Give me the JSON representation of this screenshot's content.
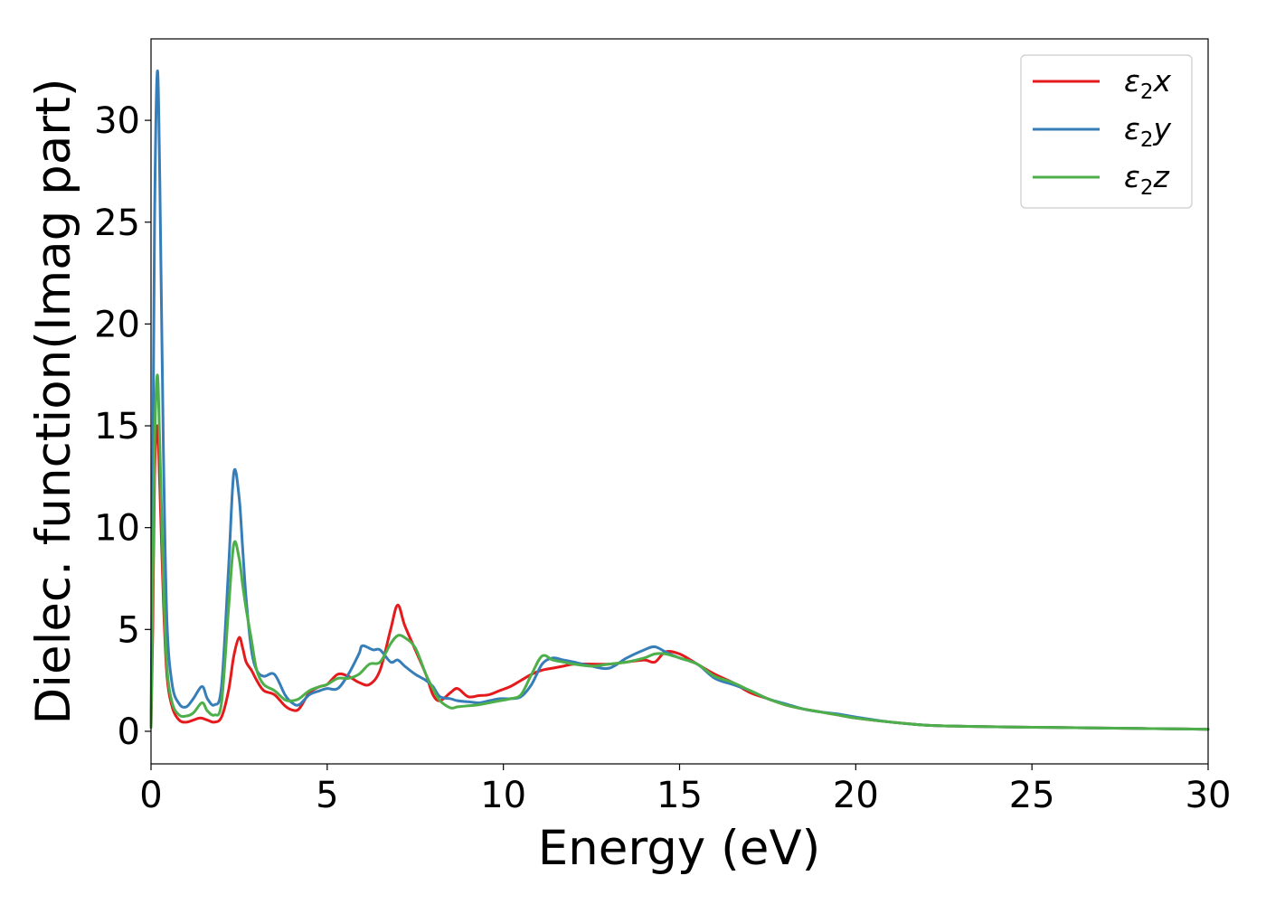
{
  "chart_data": {
    "type": "line",
    "title": "",
    "xlabel": "Energy (eV)",
    "ylabel": "Dielec. function(Imag part)",
    "xlim": [
      0,
      30
    ],
    "ylim": [
      -1.6,
      34
    ],
    "xticks": [
      0,
      5,
      10,
      15,
      20,
      25,
      30
    ],
    "yticks": [
      0,
      5,
      10,
      15,
      20,
      25,
      30
    ],
    "xtick_labels": [
      "0",
      "5",
      "10",
      "15",
      "20",
      "25",
      "30"
    ],
    "ytick_labels": [
      "0",
      "5",
      "10",
      "15",
      "20",
      "25",
      "30"
    ],
    "grid": false,
    "legend_position": "top-right",
    "series": [
      {
        "name": "ε₂x",
        "legend_base": "ε",
        "legend_sub": "2",
        "legend_suffix": "x",
        "color": "#e41a1c",
        "x": [
          0,
          0.05,
          0.1,
          0.18,
          0.25,
          0.35,
          0.45,
          0.6,
          0.8,
          1.0,
          1.2,
          1.4,
          1.6,
          1.8,
          2.0,
          2.2,
          2.35,
          2.5,
          2.6,
          2.7,
          2.85,
          3.0,
          3.2,
          3.5,
          3.8,
          4.0,
          4.2,
          4.5,
          4.8,
          5.0,
          5.3,
          5.6,
          5.9,
          6.2,
          6.5,
          6.8,
          7.0,
          7.2,
          7.5,
          7.8,
          8.0,
          8.2,
          8.5,
          8.7,
          9.0,
          9.3,
          9.6,
          9.9,
          10.2,
          10.5,
          10.8,
          11.1,
          11.4,
          11.7,
          12.0,
          12.5,
          13.0,
          13.5,
          14.0,
          14.3,
          14.6,
          15.0,
          15.5,
          16.0,
          16.5,
          17.0,
          17.5,
          18.0,
          18.5,
          19.0,
          19.5,
          20.0,
          21.0,
          22.0,
          23.0,
          24.0,
          25.0,
          26.0,
          27.0,
          28.0,
          29.0,
          30.0
        ],
        "y": [
          0.2,
          5,
          12.5,
          15.0,
          12.0,
          6.5,
          2.8,
          1.2,
          0.55,
          0.45,
          0.55,
          0.65,
          0.55,
          0.45,
          0.7,
          2.0,
          3.7,
          4.6,
          4.1,
          3.4,
          3.0,
          2.5,
          2.0,
          1.8,
          1.25,
          1.05,
          1.1,
          1.9,
          2.2,
          2.3,
          2.8,
          2.7,
          2.4,
          2.3,
          3.0,
          5.0,
          6.2,
          5.2,
          4.0,
          2.8,
          1.8,
          1.5,
          1.9,
          2.1,
          1.7,
          1.75,
          1.8,
          2.0,
          2.2,
          2.5,
          2.8,
          3.0,
          3.1,
          3.2,
          3.3,
          3.3,
          3.3,
          3.4,
          3.5,
          3.4,
          3.9,
          3.8,
          3.3,
          2.8,
          2.4,
          1.9,
          1.6,
          1.3,
          1.1,
          0.95,
          0.8,
          0.65,
          0.45,
          0.3,
          0.25,
          0.22,
          0.2,
          0.18,
          0.16,
          0.14,
          0.12,
          0.1
        ]
      },
      {
        "name": "ε₂y",
        "legend_base": "ε",
        "legend_sub": "2",
        "legend_suffix": "y",
        "color": "#377eb8",
        "x": [
          0,
          0.05,
          0.1,
          0.18,
          0.25,
          0.35,
          0.45,
          0.6,
          0.8,
          1.0,
          1.2,
          1.45,
          1.6,
          1.8,
          2.0,
          2.2,
          2.35,
          2.5,
          2.6,
          2.7,
          2.85,
          3.0,
          3.2,
          3.5,
          3.8,
          4.0,
          4.2,
          4.5,
          4.8,
          5.0,
          5.3,
          5.6,
          5.9,
          6.0,
          6.3,
          6.5,
          6.8,
          7.0,
          7.2,
          7.5,
          7.8,
          8.0,
          8.2,
          8.5,
          8.7,
          9.0,
          9.3,
          9.6,
          9.9,
          10.2,
          10.5,
          10.8,
          11.1,
          11.4,
          11.7,
          12.0,
          12.5,
          13.0,
          13.5,
          14.0,
          14.3,
          14.6,
          15.0,
          15.5,
          16.0,
          16.5,
          17.0,
          17.5,
          18.0,
          18.5,
          19.0,
          19.5,
          20.0,
          21.0,
          22.0,
          23.0,
          24.0,
          25.0,
          26.0,
          27.0,
          28.0,
          29.0,
          30.0
        ],
        "y": [
          0.3,
          12,
          25,
          32.4,
          27,
          14,
          5.5,
          2.3,
          1.35,
          1.2,
          1.6,
          2.2,
          1.6,
          1.3,
          2.2,
          8.0,
          12.7,
          11.5,
          9.0,
          6.5,
          4.0,
          3.0,
          2.7,
          2.8,
          1.8,
          1.4,
          1.3,
          1.8,
          2.0,
          2.1,
          2.1,
          2.8,
          3.8,
          4.2,
          4.0,
          4.0,
          3.4,
          3.5,
          3.2,
          2.8,
          2.5,
          2.2,
          1.7,
          1.6,
          1.5,
          1.45,
          1.4,
          1.5,
          1.6,
          1.6,
          1.7,
          2.3,
          3.3,
          3.6,
          3.5,
          3.4,
          3.2,
          3.1,
          3.6,
          4.0,
          4.15,
          3.9,
          3.6,
          3.3,
          2.6,
          2.3,
          2.0,
          1.6,
          1.35,
          1.1,
          0.95,
          0.85,
          0.7,
          0.45,
          0.3,
          0.25,
          0.22,
          0.2,
          0.18,
          0.16,
          0.14,
          0.12,
          0.1
        ]
      },
      {
        "name": "ε₂z",
        "legend_base": "ε",
        "legend_sub": "2",
        "legend_suffix": "z",
        "color": "#4daf4a",
        "x": [
          0,
          0.05,
          0.1,
          0.18,
          0.25,
          0.35,
          0.45,
          0.6,
          0.8,
          1.0,
          1.2,
          1.45,
          1.6,
          1.8,
          2.0,
          2.2,
          2.35,
          2.5,
          2.6,
          2.7,
          2.85,
          3.0,
          3.2,
          3.5,
          3.8,
          4.0,
          4.2,
          4.5,
          4.8,
          5.0,
          5.3,
          5.6,
          5.9,
          6.2,
          6.5,
          6.8,
          7.0,
          7.2,
          7.5,
          7.8,
          8.0,
          8.2,
          8.5,
          8.7,
          9.0,
          9.3,
          9.6,
          9.9,
          10.2,
          10.5,
          10.8,
          11.1,
          11.4,
          11.7,
          12.0,
          12.5,
          13.0,
          13.5,
          14.0,
          14.3,
          14.6,
          15.0,
          15.5,
          16.0,
          16.5,
          17.0,
          17.5,
          18.0,
          18.5,
          19.0,
          19.5,
          20.0,
          21.0,
          22.0,
          23.0,
          24.0,
          25.0,
          26.0,
          27.0,
          28.0,
          29.0,
          30.0
        ],
        "y": [
          0.2,
          7,
          14,
          17.5,
          14,
          7.5,
          3.2,
          1.4,
          0.8,
          0.75,
          0.9,
          1.4,
          1.0,
          0.8,
          1.4,
          6.0,
          9.2,
          8.5,
          7.2,
          6.0,
          4.5,
          3.0,
          2.3,
          2.0,
          1.55,
          1.5,
          1.6,
          2.0,
          2.2,
          2.3,
          2.6,
          2.6,
          2.8,
          3.3,
          3.4,
          4.3,
          4.7,
          4.6,
          4.1,
          2.8,
          2.1,
          1.5,
          1.15,
          1.2,
          1.25,
          1.3,
          1.4,
          1.5,
          1.6,
          1.8,
          2.8,
          3.7,
          3.5,
          3.4,
          3.3,
          3.2,
          3.3,
          3.4,
          3.6,
          3.8,
          3.8,
          3.6,
          3.3,
          2.7,
          2.4,
          2.0,
          1.6,
          1.3,
          1.1,
          0.95,
          0.8,
          0.65,
          0.45,
          0.3,
          0.25,
          0.22,
          0.2,
          0.18,
          0.16,
          0.14,
          0.12,
          0.1
        ]
      }
    ]
  }
}
